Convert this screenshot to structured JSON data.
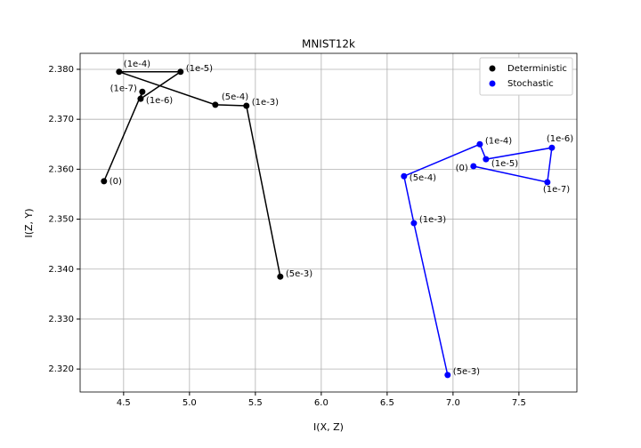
{
  "chart_data": {
    "type": "line",
    "title": "MNIST12k",
    "x_label": "I(X, Z)",
    "y_label": "I(Z, Y)",
    "xlim": [
      4.17,
      7.94
    ],
    "ylim": [
      2.3154,
      2.3832
    ],
    "xticks": [
      4.5,
      {
        "value": 5,
        "label": "5.0"
      },
      5.5,
      {
        "value": 6,
        "label": "6.0"
      },
      6.5,
      {
        "value": 7,
        "label": "7.0"
      },
      7.5
    ],
    "yticks": [
      {
        "value": 2.32,
        "label": "2.320"
      },
      {
        "value": 2.33,
        "label": "2.330"
      },
      {
        "value": 2.34,
        "label": "2.340"
      },
      {
        "value": 2.35,
        "label": "2.350"
      },
      {
        "value": 2.36,
        "label": "2.360"
      },
      {
        "value": 2.37,
        "label": "2.370"
      },
      {
        "value": 2.38,
        "label": "2.380"
      }
    ],
    "grid": true,
    "legend": "upper right",
    "series": [
      {
        "name": "Deterministic",
        "color": "#000000",
        "x": [
          4.351,
          4.642,
          4.629,
          4.932,
          4.466,
          5.196,
          5.432,
          5.689
        ],
        "values": [
          2.3576,
          2.3755,
          2.3741,
          2.3795,
          2.3795,
          2.3729,
          2.3727,
          2.3385
        ],
        "labels": [
          "(0)",
          "(1e-7)",
          "(1e-6)",
          "(1e-5)",
          "(1e-4)",
          "(5e-4)",
          "(1e-3)",
          "(5e-3)"
        ]
      },
      {
        "name": "Stochastic",
        "color": "#0000ff",
        "x": [
          7.155,
          7.716,
          7.75,
          7.25,
          7.203,
          6.628,
          6.703,
          6.959
        ],
        "values": [
          2.3606,
          2.3574,
          2.3643,
          2.362,
          2.365,
          2.3586,
          2.3492,
          2.3188
        ],
        "labels": [
          "(0)",
          "(1e-7)",
          "(1e-6)",
          "(1e-5)",
          "(1e-4)",
          "(5e-4)",
          "(1e-3)",
          "(5e-3)"
        ]
      }
    ]
  }
}
